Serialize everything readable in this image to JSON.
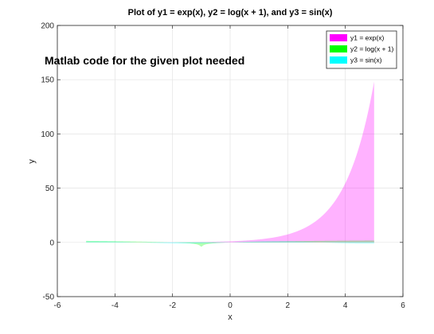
{
  "overlay_text": "Matlab code for the given plot needed",
  "chart_data": {
    "type": "area",
    "title": "Plot of y1 = exp(x), y2 = log(x + 1), and y3 = sin(x)",
    "xlabel": "x",
    "ylabel": "y",
    "xlim": [
      -6,
      6
    ],
    "ylim": [
      -50,
      200
    ],
    "xticks": [
      -6,
      -4,
      -2,
      0,
      2,
      4,
      6
    ],
    "yticks": [
      -50,
      0,
      50,
      100,
      150,
      200
    ],
    "grid": true,
    "legend_position": "top-right",
    "x_range": [
      -5,
      5
    ],
    "series": [
      {
        "name": "y1 = exp(x)",
        "function": "exp(x)",
        "color": "#ff00ff",
        "fill_opacity": 0.3
      },
      {
        "name": "y2 = log(x + 1)",
        "function": "log(x + 1)",
        "color": "#00ff00",
        "fill_opacity": 0.3
      },
      {
        "name": "y3 = sin(x)",
        "function": "sin(x)",
        "color": "#00ffff",
        "fill_opacity": 0.3
      }
    ]
  }
}
